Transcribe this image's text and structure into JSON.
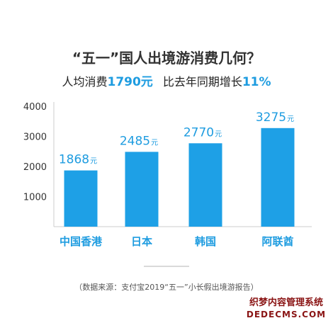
{
  "title": "“五一”国人出境游消费几何？",
  "subtitle": {
    "part1": "人均消费",
    "value1": "1790元",
    "part2": "比去年同期增长",
    "value2": "11%"
  },
  "chart_data": {
    "type": "bar",
    "categories": [
      "中国香港",
      "日本",
      "韩国",
      "阿联酋"
    ],
    "values": [
      1868,
      2485,
      2770,
      3275
    ],
    "value_labels": [
      "1868",
      "2485",
      "2770",
      "3275"
    ],
    "unit": "元",
    "yticks": [
      1000,
      2000,
      3000,
      4000
    ],
    "ylim": [
      0,
      4000
    ],
    "grid": false,
    "colors": {
      "bar": "#1ea0e6",
      "label": "#1e9ce0",
      "axis": "#cccccc"
    }
  },
  "source": "（数据来源：支付宝2019“五一”小长假出境游报告）",
  "watermark": {
    "line1": "织梦内容管理系统",
    "line2": "DEDECMS.COM"
  }
}
